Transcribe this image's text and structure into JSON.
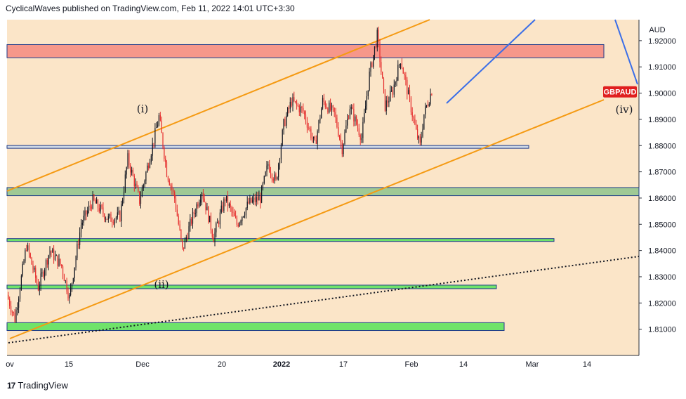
{
  "header": {
    "published_text": "CyclicalWaves published on TradingView.com, Feb 11, 2022 14:01 UTC+3:30"
  },
  "footer": {
    "logo_icon": "tradingview-logo-icon",
    "brand": "TradingView"
  },
  "colors": {
    "background": "#fbe5c8",
    "up_candle": "#131722",
    "down_candle": "#e52d2d",
    "channel": "#f59a12",
    "projection": "#3a6ee8",
    "resistance_zone": "#f6978a",
    "support_zone_dark": "#9fc995",
    "support_zone_bright": "#6fe36a",
    "symbol_badge": "#e01f1f"
  },
  "chart_data": {
    "type": "candlestick",
    "symbol": "GBPAUD",
    "currency_label": "AUD",
    "last_price": 1.9005,
    "x_tick_labels": [
      "ov",
      "15",
      "Dec",
      "20",
      "2022",
      "17",
      "Feb",
      "14",
      "Mar",
      "14"
    ],
    "y_ticks": [
      1.81,
      1.82,
      1.83,
      1.84,
      1.85,
      1.86,
      1.87,
      1.88,
      1.89,
      1.9,
      1.91,
      1.92
    ],
    "y_tick_labels": [
      "1.81000",
      "1.82000",
      "1.83000",
      "1.84000",
      "1.85000",
      "1.86000",
      "1.87000",
      "1.88000",
      "1.89000",
      "1.90000",
      "1.91000",
      "1.92000"
    ],
    "ylim": [
      1.8,
      1.928
    ],
    "price_path": [
      {
        "x": "Nov 1",
        "y": 1.823
      },
      {
        "x": "Nov 3",
        "y": 1.814
      },
      {
        "x": "Nov 6",
        "y": 1.842
      },
      {
        "x": "Nov 9",
        "y": 1.826
      },
      {
        "x": "Nov 12",
        "y": 1.84
      },
      {
        "x": "Nov 15",
        "y": 1.834
      },
      {
        "x": "Nov 17",
        "y": 1.822
      },
      {
        "x": "Nov 20",
        "y": 1.85
      },
      {
        "x": "Nov 23",
        "y": 1.859
      },
      {
        "x": "Nov 27",
        "y": 1.852
      },
      {
        "x": "Nov 30",
        "y": 1.853
      },
      {
        "x": "Dec 2",
        "y": 1.875
      },
      {
        "x": "Dec 5",
        "y": 1.859
      },
      {
        "x": "Dec 8",
        "y": 1.878
      },
      {
        "x": "Dec 10",
        "y": 1.891
      },
      {
        "x": "Dec 12",
        "y": 1.87
      },
      {
        "x": "Dec 14",
        "y": 1.86
      },
      {
        "x": "Dec 16",
        "y": 1.84
      },
      {
        "x": "Dec 18",
        "y": 1.85
      },
      {
        "x": "Dec 21",
        "y": 1.863
      },
      {
        "x": "Dec 24",
        "y": 1.845
      },
      {
        "x": "Dec 27",
        "y": 1.86
      },
      {
        "x": "Dec 30",
        "y": 1.85
      },
      {
        "x": "Jan 2",
        "y": 1.858
      },
      {
        "x": "Jan 5",
        "y": 1.86
      },
      {
        "x": "Jan 7",
        "y": 1.873
      },
      {
        "x": "Jan 9",
        "y": 1.866
      },
      {
        "x": "Jan 11",
        "y": 1.888
      },
      {
        "x": "Jan 13",
        "y": 1.897
      },
      {
        "x": "Jan 16",
        "y": 1.893
      },
      {
        "x": "Jan 19",
        "y": 1.88
      },
      {
        "x": "Jan 21",
        "y": 1.897
      },
      {
        "x": "Jan 24",
        "y": 1.892
      },
      {
        "x": "Jan 26",
        "y": 1.879
      },
      {
        "x": "Jan 28",
        "y": 1.895
      },
      {
        "x": "Jan 31",
        "y": 1.883
      },
      {
        "x": "Feb 2",
        "y": 1.907
      },
      {
        "x": "Feb 4",
        "y": 1.922
      },
      {
        "x": "Feb 6",
        "y": 1.895
      },
      {
        "x": "Feb 8",
        "y": 1.901
      },
      {
        "x": "Feb 10",
        "y": 1.913
      },
      {
        "x": "Feb 12",
        "y": 1.899
      },
      {
        "x": "Feb 14",
        "y": 1.885
      },
      {
        "x": "Feb 15",
        "y": 1.88
      },
      {
        "x": "Feb 16",
        "y": 1.892
      },
      {
        "x": "Feb 18",
        "y": 1.901
      }
    ],
    "zones": [
      {
        "name": "resistance",
        "from": 1.9135,
        "to": 1.9185,
        "color": "#f6978a"
      },
      {
        "name": "support-1",
        "from": 1.8609,
        "to": 1.864,
        "color": "#9fc995"
      },
      {
        "name": "support-2",
        "from": 1.8255,
        "to": 1.8268,
        "color": "#6fe36a"
      },
      {
        "name": "support-3",
        "from": 1.8095,
        "to": 1.8125,
        "color": "#6fe36a"
      }
    ],
    "horizontal_lines": [
      {
        "name": "level-1.8795",
        "value": 1.8795
      },
      {
        "name": "level-1.8440",
        "value": 1.844
      }
    ],
    "wave_labels": [
      "(i)",
      "(ii)",
      "(iv)"
    ]
  }
}
